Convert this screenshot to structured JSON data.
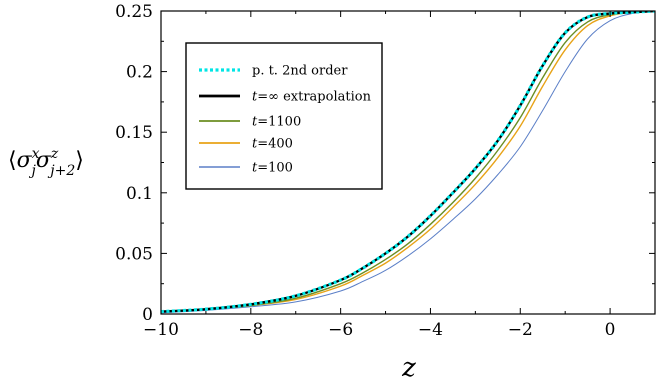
{
  "chart_data": {
    "type": "line",
    "xlabel": "z",
    "ylabel": {
      "open": "⟨",
      "close": "⟩",
      "sym1": "σ",
      "sup1": "x",
      "sub1": "j",
      "sym2": "σ",
      "sup2": "z",
      "sub2": "j+2"
    },
    "xlim": [
      -10,
      1
    ],
    "ylim": [
      0,
      0.25
    ],
    "xticks": [
      -10,
      -8,
      -6,
      -4,
      -2,
      0
    ],
    "xtick_labels": [
      "−10",
      "−8",
      "−6",
      "−4",
      "−2",
      "0"
    ],
    "yticks": [
      0,
      0.05,
      0.1,
      0.15,
      0.2,
      0.25
    ],
    "ytick_labels": [
      "0",
      "0.05",
      "0.1",
      "0.15",
      "0.2",
      "0.25"
    ],
    "grid": false,
    "legend_position": "top-left",
    "series": [
      {
        "name": "p. t. 2nd order",
        "color": "#00e5e5",
        "style": "dotted",
        "x": [
          -10,
          -9,
          -8,
          -7,
          -6,
          -5.5,
          -5,
          -4.5,
          -4,
          -3.5,
          -3,
          -2.5,
          -2,
          -1.5,
          -1,
          -0.5,
          0,
          0.5,
          1
        ],
        "y": [
          0.002,
          0.004,
          0.008,
          0.015,
          0.028,
          0.038,
          0.05,
          0.064,
          0.081,
          0.1,
          0.12,
          0.143,
          0.172,
          0.205,
          0.232,
          0.245,
          0.248,
          0.249,
          0.25
        ]
      },
      {
        "name": "t=∞ extrapolation",
        "color": "#000000",
        "style": "solid",
        "x": [
          -10,
          -9,
          -8,
          -7,
          -6,
          -5.5,
          -5,
          -4.5,
          -4,
          -3.5,
          -3,
          -2.5,
          -2,
          -1.5,
          -1,
          -0.5,
          0,
          0.5,
          1
        ],
        "y": [
          0.002,
          0.004,
          0.008,
          0.015,
          0.028,
          0.038,
          0.05,
          0.064,
          0.081,
          0.1,
          0.12,
          0.143,
          0.172,
          0.205,
          0.232,
          0.245,
          0.248,
          0.249,
          0.25
        ]
      },
      {
        "name": "t=1100",
        "color": "#6b8e23",
        "style": "solid",
        "x": [
          -10,
          -9,
          -8,
          -7,
          -6,
          -5.5,
          -5,
          -4.5,
          -4,
          -3.5,
          -3,
          -2.5,
          -2,
          -1.5,
          -1,
          -0.5,
          0,
          0.5,
          1
        ],
        "y": [
          0.002,
          0.004,
          0.007,
          0.013,
          0.025,
          0.034,
          0.045,
          0.058,
          0.074,
          0.092,
          0.112,
          0.135,
          0.162,
          0.195,
          0.224,
          0.241,
          0.247,
          0.249,
          0.25
        ]
      },
      {
        "name": "t=400",
        "color": "#e8a317",
        "style": "solid",
        "x": [
          -10,
          -9,
          -8,
          -7,
          -6,
          -5.5,
          -5,
          -4.5,
          -4,
          -3.5,
          -3,
          -2.5,
          -2,
          -1.5,
          -1,
          -0.5,
          0,
          0.5,
          1
        ],
        "y": [
          0.002,
          0.004,
          0.007,
          0.012,
          0.023,
          0.032,
          0.042,
          0.055,
          0.07,
          0.088,
          0.107,
          0.129,
          0.155,
          0.188,
          0.218,
          0.238,
          0.246,
          0.249,
          0.25
        ]
      },
      {
        "name": "t=100",
        "color": "#5b7fc7",
        "style": "solid",
        "x": [
          -10,
          -9,
          -8,
          -7,
          -6,
          -5.5,
          -5,
          -4.5,
          -4,
          -3.5,
          -3,
          -2.5,
          -2,
          -1.5,
          -1,
          -0.5,
          0,
          0.5,
          1
        ],
        "y": [
          0.001,
          0.003,
          0.006,
          0.01,
          0.019,
          0.027,
          0.036,
          0.048,
          0.062,
          0.078,
          0.095,
          0.115,
          0.138,
          0.168,
          0.2,
          0.227,
          0.242,
          0.248,
          0.25
        ]
      }
    ],
    "legend": [
      {
        "series": 0,
        "label": "p. t. 2nd order",
        "italic": "",
        "rest": ""
      },
      {
        "series": 1,
        "label": "",
        "italic": "t",
        "rest": "=∞ extrapolation"
      },
      {
        "series": 2,
        "label": "",
        "italic": "t",
        "rest": "=1100"
      },
      {
        "series": 3,
        "label": "",
        "italic": "t",
        "rest": "=400"
      },
      {
        "series": 4,
        "label": "",
        "italic": "t",
        "rest": "=100"
      }
    ]
  }
}
